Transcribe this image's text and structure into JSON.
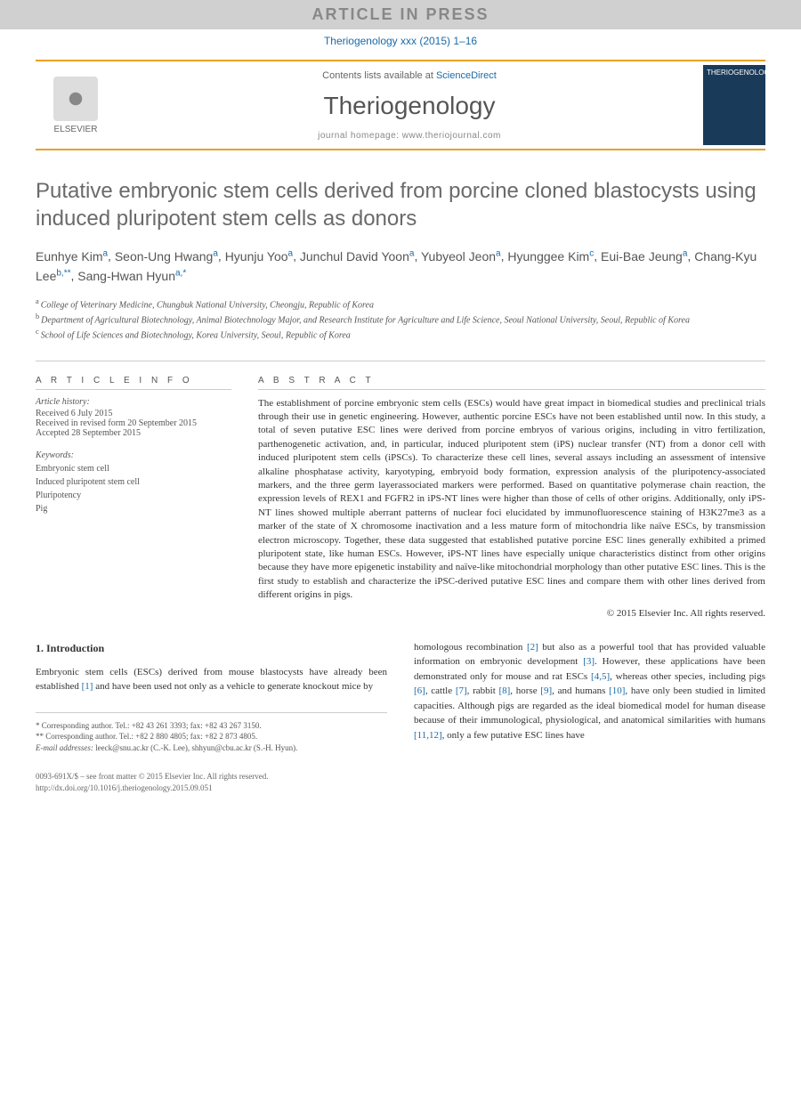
{
  "banner": "ARTICLE IN PRESS",
  "citation": "Theriogenology xxx (2015) 1–16",
  "publisher": "ELSEVIER",
  "contents_prefix": "Contents lists available at ",
  "contents_link": "ScienceDirect",
  "journal": "Theriogenology",
  "homepage_prefix": "journal homepage: ",
  "homepage_url": "www.theriojournal.com",
  "cover_text": "THERIOGENOLOGY",
  "title": "Putative embryonic stem cells derived from porcine cloned blastocysts using induced pluripotent stem cells as donors",
  "authors": [
    {
      "name": "Eunhye Kim",
      "sup": "a"
    },
    {
      "name": "Seon-Ung Hwang",
      "sup": "a"
    },
    {
      "name": "Hyunju Yoo",
      "sup": "a"
    },
    {
      "name": "Junchul David Yoon",
      "sup": "a"
    },
    {
      "name": "Yubyeol Jeon",
      "sup": "a"
    },
    {
      "name": "Hyunggee Kim",
      "sup": "c"
    },
    {
      "name": "Eui-Bae Jeung",
      "sup": "a"
    },
    {
      "name": "Chang-Kyu Lee",
      "sup": "b,**"
    },
    {
      "name": "Sang-Hwan Hyun",
      "sup": "a,*"
    }
  ],
  "affiliations": [
    {
      "sup": "a",
      "text": "College of Veterinary Medicine, Chungbuk National University, Cheongju, Republic of Korea"
    },
    {
      "sup": "b",
      "text": "Department of Agricultural Biotechnology, Animal Biotechnology Major, and Research Institute for Agriculture and Life Science, Seoul National University, Seoul, Republic of Korea"
    },
    {
      "sup": "c",
      "text": "School of Life Sciences and Biotechnology, Korea University, Seoul, Republic of Korea"
    }
  ],
  "info_heading": "A R T I C L E  I N F O",
  "history_heading": "Article history:",
  "history": [
    "Received 6 July 2015",
    "Received in revised form 20 September 2015",
    "Accepted 28 September 2015"
  ],
  "keywords_heading": "Keywords:",
  "keywords": [
    "Embryonic stem cell",
    "Induced pluripotent stem cell",
    "Pluripotency",
    "Pig"
  ],
  "abstract_heading": "A B S T R A C T",
  "abstract": "The establishment of porcine embryonic stem cells (ESCs) would have great impact in biomedical studies and preclinical trials through their use in genetic engineering. However, authentic porcine ESCs have not been established until now. In this study, a total of seven putative ESC lines were derived from porcine embryos of various origins, including in vitro fertilization, parthenogenetic activation, and, in particular, induced pluripotent stem (iPS) nuclear transfer (NT) from a donor cell with induced pluripotent stem cells (iPSCs). To characterize these cell lines, several assays including an assessment of intensive alkaline phosphatase activity, karyotyping, embryoid body formation, expression analysis of the pluripotency-associated markers, and the three germ layerassociated markers were performed. Based on quantitative polymerase chain reaction, the expression levels of REX1 and FGFR2 in iPS-NT lines were higher than those of cells of other origins. Additionally, only iPS-NT lines showed multiple aberrant patterns of nuclear foci elucidated by immunofluorescence staining of H3K27me3 as a marker of the state of X chromosome inactivation and a less mature form of mitochondria like naïve ESCs, by transmission electron microscopy. Together, these data suggested that established putative porcine ESC lines generally exhibited a primed pluripotent state, like human ESCs. However, iPS-NT lines have especially unique characteristics distinct from other origins because they have more epigenetic instability and naïve-like mitochondrial morphology than other putative ESC lines. This is the first study to establish and characterize the iPSC-derived putative ESC lines and compare them with other lines derived from different origins in pigs.",
  "copyright": "© 2015 Elsevier Inc. All rights reserved.",
  "intro_heading": "1. Introduction",
  "intro_left": "Embryonic stem cells (ESCs) derived from mouse blastocysts have already been established [1] and have been used not only as a vehicle to generate knockout mice by",
  "intro_right": "homologous recombination [2] but also as a powerful tool that has provided valuable information on embryonic development [3]. However, these applications have been demonstrated only for mouse and rat ESCs [4,5], whereas other species, including pigs [6], cattle [7], rabbit [8], horse [9], and humans [10], have only been studied in limited capacities. Although pigs are regarded as the ideal biomedical model for human disease because of their immunological, physiological, and anatomical similarities with humans [11,12], only a few putative ESC lines have",
  "footnotes": {
    "corr1": "* Corresponding author. Tel.: +82 43 261 3393; fax: +82 43 267 3150.",
    "corr2": "** Corresponding author. Tel.: +82 2 880 4805; fax: +82 2 873 4805.",
    "emails_label": "E-mail addresses:",
    "emails": " leeck@snu.ac.kr (C.-K. Lee), shhyun@cbu.ac.kr (S.-H. Hyun)."
  },
  "footer": {
    "line1": "0093-691X/$ – see front matter © 2015 Elsevier Inc. All rights reserved.",
    "line2": "http://dx.doi.org/10.1016/j.theriogenology.2015.09.051"
  },
  "refs": [
    "[1]",
    "[2]",
    "[3]",
    "[4,5]",
    "[6]",
    "[7]",
    "[8]",
    "[9]",
    "[10]",
    "[11,12]"
  ],
  "colors": {
    "accent": "#e8a028",
    "link": "#1a6ba8",
    "title_grey": "#6a6a6a"
  }
}
